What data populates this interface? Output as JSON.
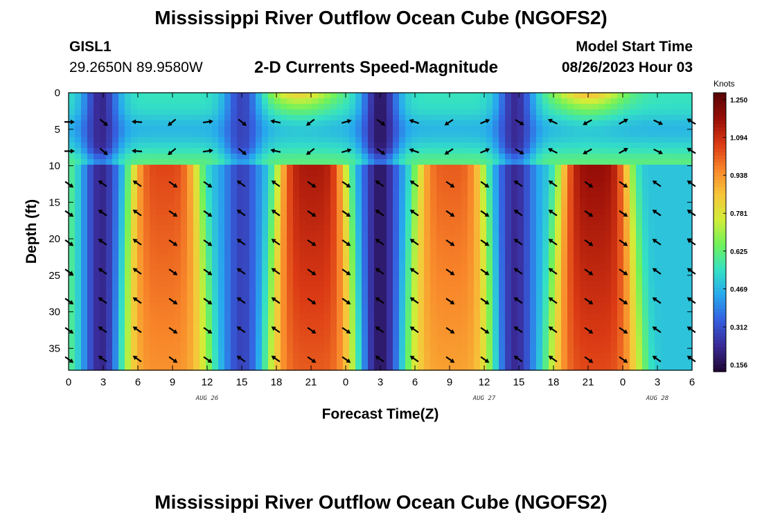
{
  "page": {
    "title": "Mississippi River Outflow Ocean Cube (NGOFS2)",
    "bottom_title": "Mississippi River Outflow Ocean Cube (NGOFS2)",
    "station": "GISL1",
    "coordinates": "29.2650N  89.9580W",
    "subtitle": "2-D Currents Speed-Magnitude",
    "model_start_label": "Model Start Time",
    "model_start_value": "08/26/2023 Hour 03"
  },
  "chart_data": {
    "type": "heatmap",
    "title": "2-D Currents Speed-Magnitude",
    "xlabel": "Forecast Time(Z)",
    "ylabel": "Depth (ft)",
    "x_range_hours": [
      0,
      54
    ],
    "y_range": [
      0,
      38
    ],
    "x_ticks": [
      "0",
      "3",
      "6",
      "9",
      "12",
      "15",
      "18",
      "21",
      "0",
      "3",
      "6",
      "9",
      "12",
      "15",
      "18",
      "21",
      "0",
      "3",
      "6"
    ],
    "y_ticks": [
      0,
      5,
      10,
      15,
      20,
      25,
      30,
      35
    ],
    "date_labels": [
      {
        "text": "AUG 26",
        "at_hour": 12
      },
      {
        "text": "AUG 27",
        "at_hour": 36
      },
      {
        "text": "AUG 28",
        "at_hour": 51
      }
    ],
    "colorbar": {
      "units": "Knots",
      "ticks": [
        "0.156",
        "0.312",
        "0.469",
        "0.625",
        "0.781",
        "0.938",
        "1.094",
        "1.250"
      ],
      "min": 0.156,
      "max": 1.25,
      "colors": [
        "#22083a",
        "#3a2c9a",
        "#3560e0",
        "#27a9ee",
        "#34e1c4",
        "#70f25a",
        "#d2ed38",
        "#f7c53a",
        "#f8862a",
        "#db3a14",
        "#9a0f08",
        "#5a0606"
      ]
    },
    "field": {
      "upper_layer_bottom_ft": 9.5,
      "upper_maxima": [
        {
          "hour": 20,
          "speed": 0.85
        },
        {
          "hour": 45,
          "speed": 0.9
        }
      ],
      "lower_cores": [
        {
          "hour": 8.3,
          "speed": 1.03
        },
        {
          "hour": 21.1,
          "speed": 1.12
        },
        {
          "hour": 33.1,
          "speed": 1.0
        },
        {
          "hour": 45.6,
          "speed": 1.15
        }
      ],
      "slack_minima": [
        {
          "hour": 2.8,
          "speed": 0.24
        },
        {
          "hour": 15,
          "speed": 0.3
        },
        {
          "hour": 27,
          "speed": 0.2
        },
        {
          "hour": 38.7,
          "speed": 0.25
        }
      ]
    },
    "arrows": {
      "hours": [
        0,
        3,
        6,
        9,
        12,
        15,
        18,
        21,
        24,
        27,
        30,
        33,
        36,
        39,
        42,
        45,
        48,
        51,
        54
      ],
      "depths": [
        4,
        8,
        12.5,
        16.5,
        20.5,
        24.5,
        28.5,
        32.5,
        36.5
      ]
    }
  }
}
